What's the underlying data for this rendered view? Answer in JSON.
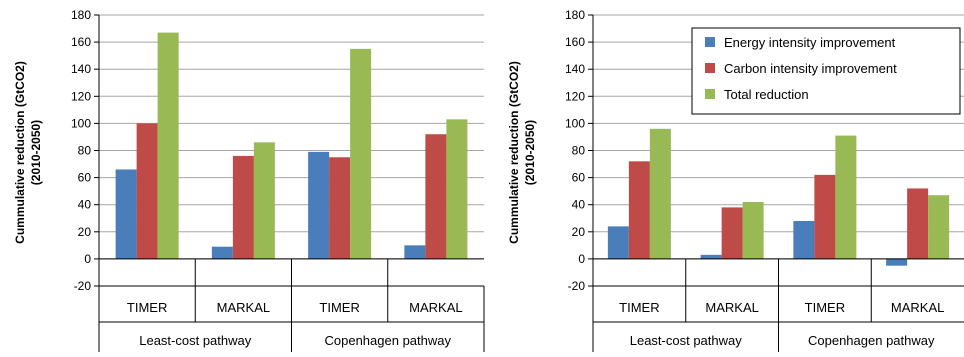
{
  "chart_data": [
    {
      "type": "bar",
      "ylabel": "Cummulative reduction (GtCO2) (2010-2050)",
      "ylabel_lines": [
        "Cummulative reduction (GtCO2)",
        "(2010-2050)"
      ],
      "ylim": [
        -20,
        180
      ],
      "yticks": [
        -20,
        0,
        20,
        40,
        60,
        80,
        100,
        120,
        140,
        160,
        180
      ],
      "grid": true,
      "legend": "none",
      "categories": [
        "TIMER",
        "MARKAL",
        "TIMER",
        "MARKAL"
      ],
      "groups": [
        {
          "label": "Least-cost pathway",
          "span": 2
        },
        {
          "label": "Copenhagen pathway",
          "span": 2
        }
      ],
      "series": [
        {
          "name": "Energy intensity improvement",
          "color": "#4a7ebb",
          "values": [
            66,
            9,
            79,
            10
          ]
        },
        {
          "name": "Carbon intensity improvement",
          "color": "#be4b48",
          "values": [
            100,
            76,
            75,
            92
          ]
        },
        {
          "name": "Total reduction",
          "color": "#98b954",
          "values": [
            167,
            86,
            155,
            103
          ]
        }
      ]
    },
    {
      "type": "bar",
      "ylabel": "Cummulative reduction (GtCO2) (2010-2050)",
      "ylabel_lines": [
        "Cummulative reduction (GtCO2)",
        "(2010-2050)"
      ],
      "ylim": [
        -20,
        180
      ],
      "yticks": [
        -20,
        0,
        20,
        40,
        60,
        80,
        100,
        120,
        140,
        160,
        180
      ],
      "grid": true,
      "legend": "top-right",
      "categories": [
        "TIMER",
        "MARKAL",
        "TIMER",
        "MARKAL"
      ],
      "groups": [
        {
          "label": "Least-cost pathway",
          "span": 2
        },
        {
          "label": "Copenhagen pathway",
          "span": 2
        }
      ],
      "series": [
        {
          "name": "Energy intensity improvement",
          "color": "#4a7ebb",
          "values": [
            24,
            3,
            28,
            -5
          ]
        },
        {
          "name": "Carbon intensity improvement",
          "color": "#be4b48",
          "values": [
            72,
            38,
            62,
            52
          ]
        },
        {
          "name": "Total reduction",
          "color": "#98b954",
          "values": [
            96,
            42,
            91,
            47
          ]
        }
      ]
    }
  ]
}
